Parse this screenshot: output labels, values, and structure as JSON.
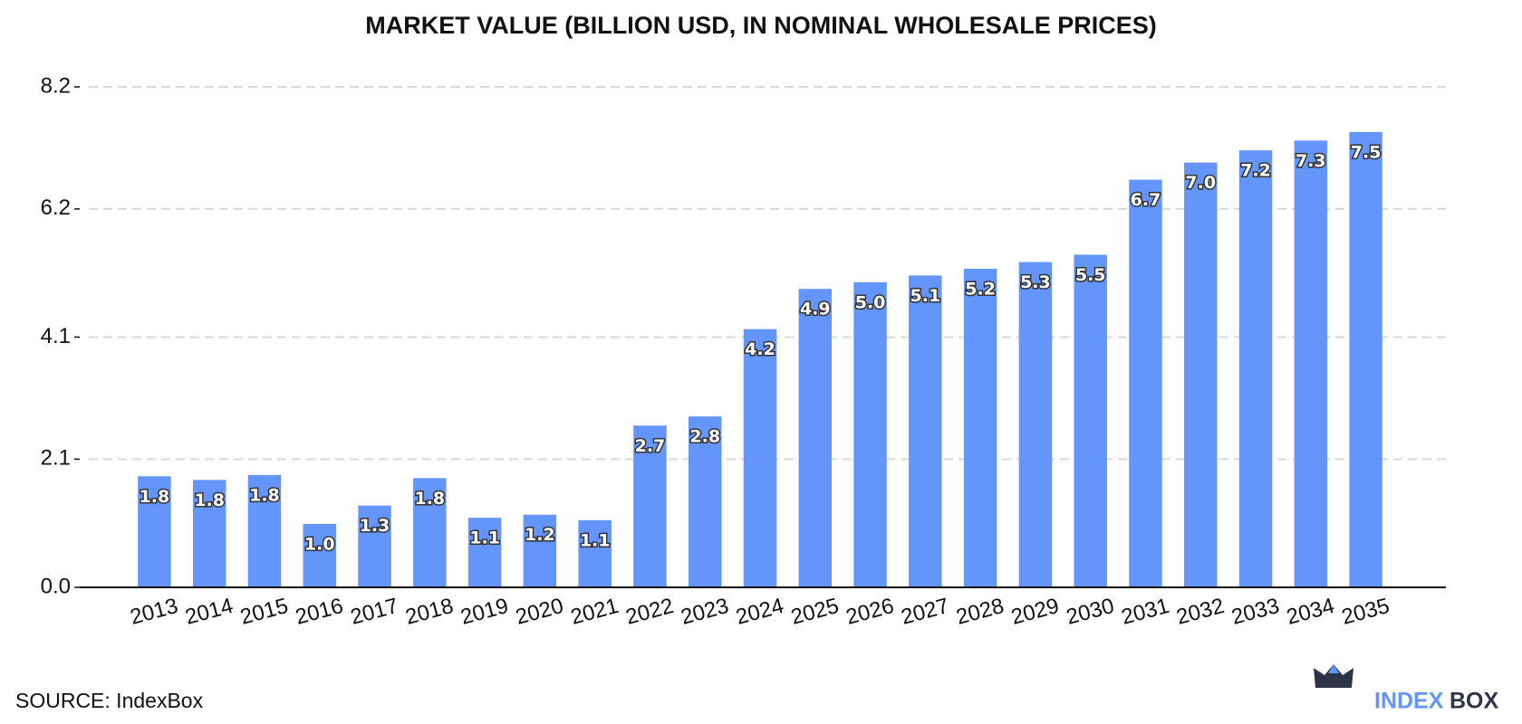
{
  "chart_data": {
    "type": "bar",
    "title": "MARKET VALUE (BILLION USD, IN NOMINAL WHOLESALE PRICES)",
    "categories": [
      "2013",
      "2014",
      "2015",
      "2016",
      "2017",
      "2018",
      "2019",
      "2020",
      "2021",
      "2022",
      "2023",
      "2024",
      "2025",
      "2026",
      "2027",
      "2028",
      "2029",
      "2030",
      "2031",
      "2032",
      "2033",
      "2034",
      "2035"
    ],
    "values": [
      1.82,
      1.76,
      1.84,
      1.04,
      1.34,
      1.79,
      1.14,
      1.19,
      1.1,
      2.65,
      2.8,
      4.23,
      4.89,
      5.0,
      5.11,
      5.22,
      5.33,
      5.45,
      6.68,
      6.96,
      7.16,
      7.32,
      7.46
    ],
    "value_labels": [
      "1.8",
      "1.8",
      "1.8",
      "1.0",
      "1.3",
      "1.8",
      "1.1",
      "1.2",
      "1.1",
      "2.7",
      "2.8",
      "4.2",
      "4.9",
      "5.0",
      "5.1",
      "5.2",
      "5.3",
      "5.5",
      "6.7",
      "7.0",
      "7.2",
      "7.3",
      "7.5"
    ],
    "color": "#6495fa",
    "ylim": [
      0,
      8.2
    ],
    "yticks": [
      {
        "value": 0,
        "label": "0.0"
      },
      2.1,
      4.1,
      6.2,
      8.2
    ],
    "grid": true
  },
  "source": "SOURCE: IndexBox",
  "logo": [
    "INDEX",
    "BOX"
  ]
}
